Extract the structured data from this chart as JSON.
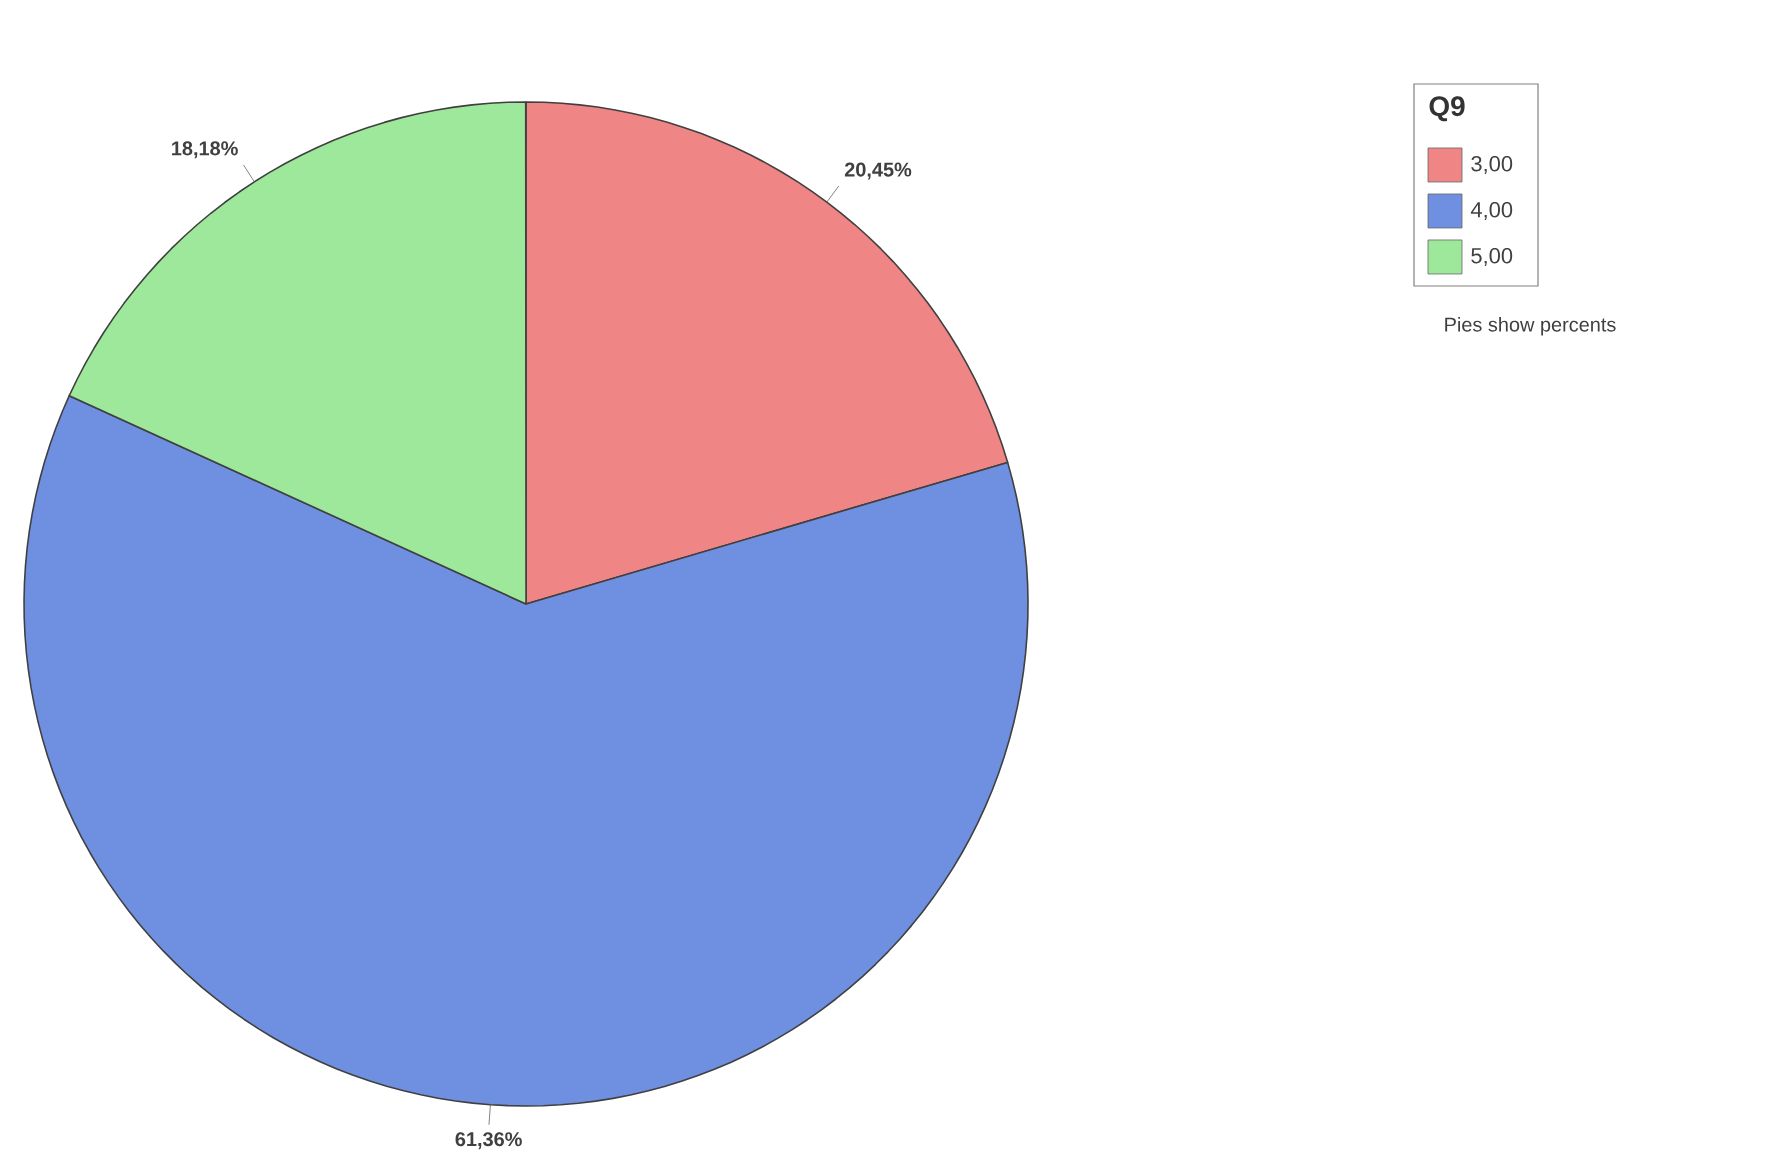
{
  "chart_data": {
    "type": "pie",
    "categories": [
      "3,00",
      "4,00",
      "5,00"
    ],
    "values": [
      20.45,
      61.36,
      18.18
    ],
    "colors": [
      "#f08585",
      "#6f8fe0",
      "#9de89b"
    ],
    "value_labels": [
      "20,45%",
      "61,36%",
      "18,18%"
    ],
    "legend_title": "Q9",
    "legend": "top right",
    "annotations": [
      "Pies show percents"
    ]
  }
}
